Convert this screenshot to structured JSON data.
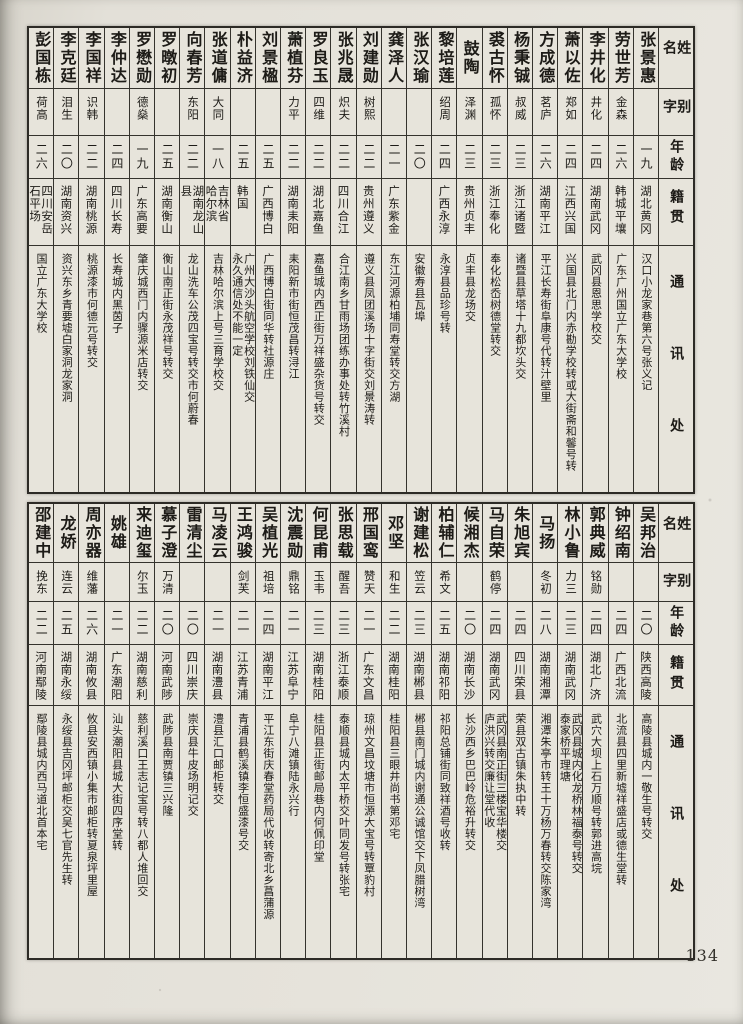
{
  "page": {
    "number": "134"
  },
  "colors": {
    "paper": "#e7e4db",
    "ink": "#1d1b17",
    "line": "#35332d"
  },
  "headers": {
    "name": "姓名",
    "courtesy": "别字",
    "age": "年龄",
    "origin": "籍贯",
    "address": "通讯处"
  },
  "tables": [
    {
      "entries": [
        {
          "name": "张景惠",
          "courtesy": "",
          "age": "一九",
          "origin": "湖北黄冈",
          "address": "汉口小龙家巷第六号张义记"
        },
        {
          "name": "劳世芳",
          "courtesy": "金森",
          "age": "二六",
          "origin": "韩城平壤",
          "address": "广东广州国立广东大学校"
        },
        {
          "name": "李井化",
          "courtesy": "井化",
          "age": "二四",
          "origin": "湖南武冈",
          "address": "武冈县恩思学校交"
        },
        {
          "name": "萧以佐",
          "courtesy": "郑如",
          "age": "二四",
          "origin": "江西兴国",
          "address": "兴国县北门内赤勘学校转或大街斋和馨号转"
        },
        {
          "name": "方成德",
          "courtesy": "茗庐",
          "age": "二六",
          "origin": "湖南平江",
          "address": "平江长寿街阜康号代转汁壁里"
        },
        {
          "name": "杨秉铖",
          "courtesy": "叔威",
          "age": "二三",
          "origin": "浙江诸暨",
          "address": "诸暨县草塔十九都坎头交"
        },
        {
          "name": "裘古怀",
          "courtesy": "孤怀",
          "age": "二三",
          "origin": "浙江奉化",
          "address": "奉化松岙树德堂转交"
        },
        {
          "name": "鼓陶",
          "courtesy": "泽渊",
          "age": "二三",
          "origin": "贵州贞丰",
          "address": "贞丰县龙场交"
        },
        {
          "name": "黎培莲",
          "courtesy": "绍周",
          "age": "二四",
          "origin": "广西永淳",
          "address": "永淳县品珍号转"
        },
        {
          "name": "张汉瑜",
          "courtesy": "",
          "age": "二〇",
          "origin": "",
          "address": "安徽寿县瓦埠"
        },
        {
          "name": "龚泽人",
          "courtesy": "",
          "age": "二一",
          "origin": "广东紫金",
          "address": "东江河源柏埔同寿堂转交方湖"
        },
        {
          "name": "刘建勋",
          "courtesy": "树熙",
          "age": "二二",
          "origin": "贵州遵义",
          "address": "遵义县凤团溪场十字街交刘景涛转"
        },
        {
          "name": "张兆晟",
          "courtesy": "炽夫",
          "age": "二二",
          "origin": "四川合江",
          "address": "合江南乡甘雨场团练办事处转竹溪村"
        },
        {
          "name": "罗良玉",
          "courtesy": "四维",
          "age": "二二",
          "origin": "湖北嘉鱼",
          "address": "嘉鱼城内西正街万祥盛杂货号转交"
        },
        {
          "name": "萧植芬",
          "courtesy": "力平",
          "age": "二二",
          "origin": "湖南耒阳",
          "address": "耒阳新市街恒茂昌转浔江"
        },
        {
          "name": "刘景楹",
          "courtesy": "",
          "age": "二五",
          "origin": "广西博白",
          "address": "广西博白街同华转社源庄"
        },
        {
          "name": "朴益济",
          "courtesy": "",
          "age": "二五",
          "origin": "韩国",
          "address": "广州大沙头航空学校刘铁仙交\n永久通信处不能一定"
        },
        {
          "name": "张道傭",
          "courtesy": "大同",
          "age": "一八",
          "origin": "吉林省\n哈尔滨",
          "address": "吉林哈尔滨上号三育学校交"
        },
        {
          "name": "向春芳",
          "courtesy": "东阳",
          "age": "二二",
          "origin": "湖南龙山县",
          "address": "龙山洗车公茂四宝号转交市何蔚春"
        },
        {
          "name": "罗暾初",
          "courtesy": "",
          "age": "二五",
          "origin": "湖南衡山",
          "address": "衡山南正街永茂祥号转交"
        },
        {
          "name": "罗懋勋",
          "courtesy": "德燊",
          "age": "一九",
          "origin": "广东高要",
          "address": "肇庆城西门内骤源米店转交"
        },
        {
          "name": "李仲达",
          "courtesy": "",
          "age": "二四",
          "origin": "四川长寿",
          "address": "长寿城内黑茵子"
        },
        {
          "name": "李国祥",
          "courtesy": "识韩",
          "age": "二二",
          "origin": "湖南桃源",
          "address": "桃源漆市何德元号转交"
        },
        {
          "name": "李克廷",
          "courtesy": "泪生",
          "age": "二〇",
          "origin": "湖南资兴",
          "address": "资兴东乡青要墟白家洞龙家洞"
        },
        {
          "name": "彭国栋",
          "courtesy": "荷高",
          "age": "二六",
          "origin": "四川安岳\n石平场",
          "address": "国立广东大学校"
        }
      ]
    },
    {
      "entries": [
        {
          "name": "吴邦治",
          "courtesy": "",
          "age": "二〇",
          "origin": "陕西高陵",
          "address": "高陵县城内一敬生号转交"
        },
        {
          "name": "钟绍南",
          "courtesy": "",
          "age": "二四",
          "origin": "广西北流",
          "address": "北流县四里新墟祥盛店或德生堂转"
        },
        {
          "name": "郭典威",
          "courtesy": "铭勋",
          "age": "二四",
          "origin": "湖北广济",
          "address": "武穴大坝上石万顺号转郭进高垸"
        },
        {
          "name": "林小鲁",
          "courtesy": "力三",
          "age": "二三",
          "origin": "湖南武冈",
          "address": "武冈县城内化龙桥林福泰号转交\n泰家桥平理塘"
        },
        {
          "name": "马扬",
          "courtesy": "冬初",
          "age": "二八",
          "origin": "湖南湘潭",
          "address": "湘潭朱亭市转王十万杨万春转交陈家湾"
        },
        {
          "name": "朱旭宾",
          "courtesy": "",
          "age": "二四",
          "origin": "四川荣县",
          "address": "荣县双古镇朱执中转"
        },
        {
          "name": "马自荣",
          "courtesy": "鹤停",
          "age": "二四",
          "origin": "湖南武冈",
          "address": "武冈县南正街三楼宝华楼交\n庐洪兴转交廉让堂代收"
        },
        {
          "name": "候湘杰",
          "courtesy": "",
          "age": "二〇",
          "origin": "湖南长沙",
          "address": "长沙西乡巴巴岭危裕升转交"
        },
        {
          "name": "柏辅仁",
          "courtesy": "希文",
          "age": "二五",
          "origin": "湖南祁阳",
          "address": "祁阳总铺街同致祥酒号收转"
        },
        {
          "name": "谢建松",
          "courtesy": "笠云",
          "age": "二三",
          "origin": "湖南郴县",
          "address": "郴县南门城内谢通公诚馆交下凤腊树湾"
        },
        {
          "name": "邓坚",
          "courtesy": "和生",
          "age": "二二",
          "origin": "湖南桂阳",
          "address": "桂阳县三眼井尚书第邓宅"
        },
        {
          "name": "邢国鸾",
          "courtesy": "赞天",
          "age": "二一",
          "origin": "广东文昌",
          "address": "琼州文昌坟塘市恒源大宝号转覃豹村"
        },
        {
          "name": "张思载",
          "courtesy": "醒吾",
          "age": "二三",
          "origin": "浙江泰顺",
          "address": "泰顺县城内太平桥交叶同发号转张宅"
        },
        {
          "name": "何昆甫",
          "courtesy": "玉韦",
          "age": "二三",
          "origin": "湖南桂阳",
          "address": "桂阳县正街邮局巷内何佩印堂"
        },
        {
          "name": "沈震勋",
          "courtesy": "鼎铭",
          "age": "二一",
          "origin": "江苏阜宁",
          "address": "阜宁八滩镇陆永兴行"
        },
        {
          "name": "吴植光",
          "courtesy": "祖培",
          "age": "二四",
          "origin": "湖南平江",
          "address": "平江东街庆春堂药局代收转寄北乡菖蒲源"
        },
        {
          "name": "王鸿骏",
          "courtesy": "剑芙",
          "age": "二一",
          "origin": "江苏青浦",
          "address": "青浦县鹤溪镇李恒盛漆号交"
        },
        {
          "name": "马凌云",
          "courtesy": "",
          "age": "二一",
          "origin": "湖南澧县",
          "address": "澧县汇口邮柜转交"
        },
        {
          "name": "雷清尘",
          "courtesy": "",
          "age": "二〇",
          "origin": "四川崇庆",
          "address": "崇庆县牛皮场明记交"
        },
        {
          "name": "慕子澄",
          "courtesy": "万清",
          "age": "二〇",
          "origin": "河南武陟",
          "address": "武陟县南贾镇三兴隆"
        },
        {
          "name": "来迪玺",
          "courtesy": "尔玉",
          "age": "二二",
          "origin": "湖南慈利",
          "address": "慈利溪口王志记宝号转八都人堆回交"
        },
        {
          "name": "姚雄",
          "courtesy": "",
          "age": "二一",
          "origin": "广东潮阳",
          "address": "汕头潮阳县城大街四序堂转"
        },
        {
          "name": "周亦器",
          "courtesy": "维藩",
          "age": "二六",
          "origin": "湖南攸县",
          "address": "攸县安西镇小集市邮柜转夏泉坪里屋"
        },
        {
          "name": "龙娇",
          "courtesy": "连云",
          "age": "二五",
          "origin": "湖南永绥",
          "address": "永绥县吉冈坪邮柜交吴七官先生转"
        },
        {
          "name": "邵建中",
          "courtesy": "挽东",
          "age": "二二",
          "origin": "河南鄢陵",
          "address": "鄢陵县城内西马道北首本宅"
        }
      ]
    }
  ]
}
